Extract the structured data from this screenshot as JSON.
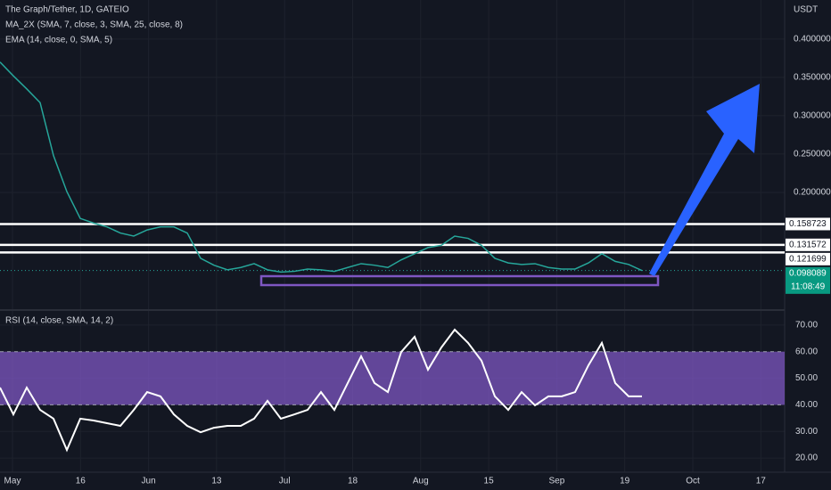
{
  "chart_data": {
    "type": "line",
    "title": "The Graph/Tether, 1D, GATEIO",
    "indicators": [
      "MA_2X (SMA, 7, close, 3, SMA, 25, close, 8)",
      "EMA (14, close, 0, SMA, 5)"
    ],
    "y_axis_label": "USDT",
    "ylim": [
      0.05,
      0.451
    ],
    "yticks": [
      {
        "value": 0.4,
        "label": "0.400000"
      },
      {
        "value": 0.35,
        "label": "0.350000"
      },
      {
        "value": 0.3,
        "label": "0.300000"
      },
      {
        "value": 0.25,
        "label": "0.250000"
      },
      {
        "value": 0.2,
        "label": "0.200000"
      }
    ],
    "xlabels": [
      "May",
      "16",
      "Jun",
      "13",
      "Jul",
      "18",
      "Aug",
      "15",
      "Sep",
      "19",
      "Oct",
      "17"
    ],
    "price": {
      "color": "#26a69a",
      "values": [
        0.37,
        0.352,
        0.335,
        0.317,
        0.248,
        0.201,
        0.166,
        0.16,
        0.155,
        0.147,
        0.143,
        0.151,
        0.155,
        0.155,
        0.147,
        0.114,
        0.105,
        0.099,
        0.102,
        0.107,
        0.099,
        0.096,
        0.097,
        0.1,
        0.099,
        0.097,
        0.102,
        0.107,
        0.105,
        0.102,
        0.112,
        0.12,
        0.128,
        0.131,
        0.143,
        0.14,
        0.131,
        0.114,
        0.108,
        0.106,
        0.107,
        0.102,
        0.1,
        0.1,
        0.108,
        0.12,
        0.11,
        0.106,
        0.098
      ]
    },
    "levels": [
      0.158723,
      0.131572,
      0.121699
    ],
    "last_price": 0.098089,
    "countdown": "11:08:49",
    "rsi": {
      "title": "RSI (14, close, SMA, 14, 2)",
      "ylim": [
        15,
        75
      ],
      "yticks": [
        {
          "value": 70,
          "label": "70.00"
        },
        {
          "value": 60,
          "label": "60.00"
        },
        {
          "value": 50,
          "label": "50.00"
        },
        {
          "value": 40,
          "label": "40.00"
        },
        {
          "value": 30,
          "label": "30.00"
        },
        {
          "value": 20,
          "label": "20.00"
        }
      ],
      "band": [
        40,
        60
      ],
      "color": "#ffffff",
      "values": [
        46.5,
        36.4,
        46.5,
        38.1,
        34.8,
        23.0,
        34.8,
        34.1,
        33.1,
        32.1,
        38.1,
        44.8,
        43.2,
        36.4,
        32.1,
        29.7,
        31.4,
        32.1,
        32.1,
        34.8,
        41.5,
        34.8,
        36.4,
        38.1,
        44.8,
        38.1,
        48.2,
        58.3,
        48.2,
        44.8,
        59.9,
        65.6,
        53.2,
        61.6,
        68.3,
        63.3,
        56.6,
        43.2,
        38.1,
        44.8,
        39.8,
        43.2,
        43.2,
        44.8,
        54.9,
        63.3,
        48.2,
        43.2,
        43.2
      ]
    }
  }
}
